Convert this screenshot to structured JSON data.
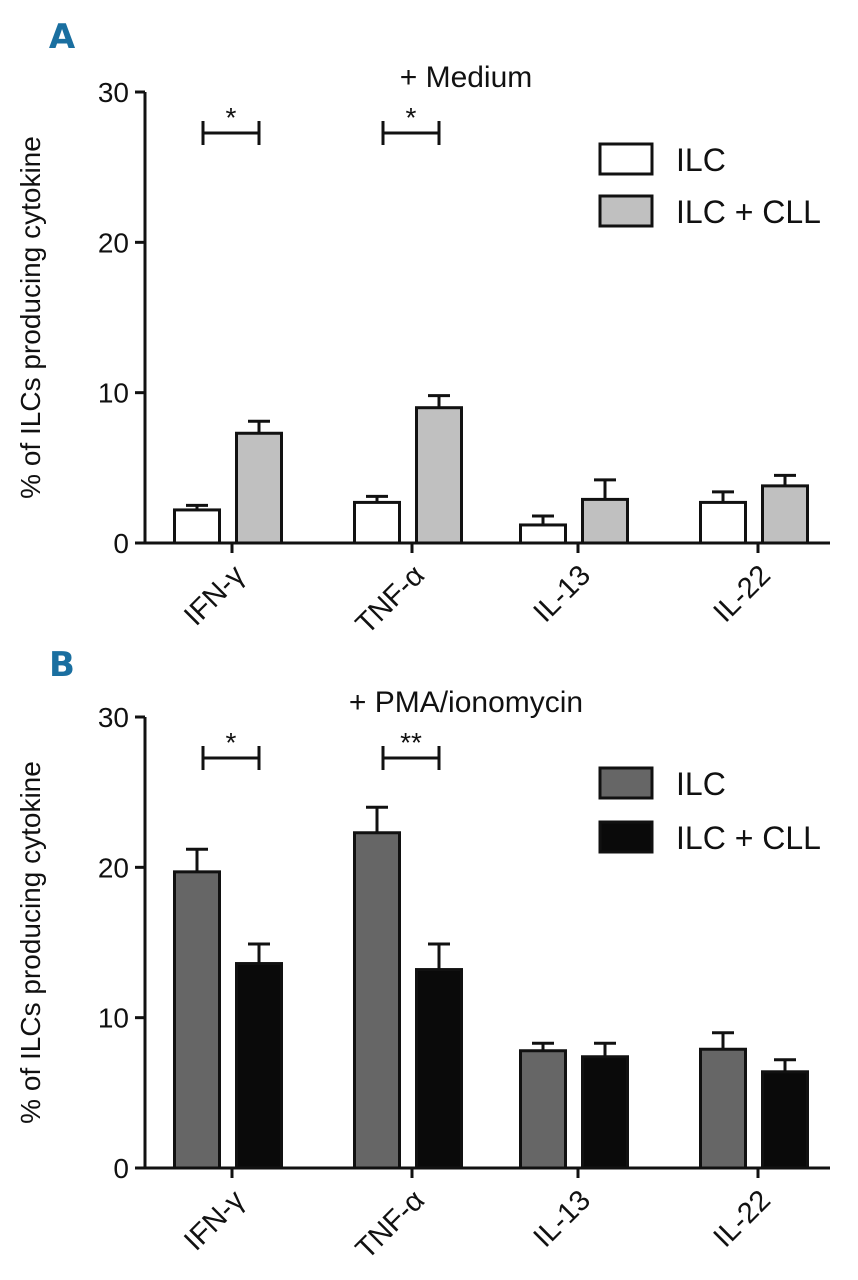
{
  "chart_data": [
    {
      "panel": "A",
      "type": "bar",
      "title": "+ Medium",
      "xlabel": "",
      "ylabel": "% of ILCs producing cytokine",
      "ylim": [
        0,
        30
      ],
      "yticks": [
        "0",
        "10",
        "20",
        "30"
      ],
      "categories": [
        "IFN-γ",
        "TNF-α",
        "IL-13",
        "IL-22"
      ],
      "series": [
        {
          "name": "ILC",
          "color": "#ffffff",
          "values": [
            2.2,
            2.7,
            1.2,
            2.7
          ],
          "errors": [
            0.3,
            0.4,
            0.6,
            0.7
          ]
        },
        {
          "name": "ILC + CLL",
          "color": "#c0c0c0",
          "values": [
            7.3,
            9.0,
            2.9,
            3.8
          ],
          "errors": [
            0.8,
            0.8,
            1.3,
            0.7
          ]
        }
      ],
      "significance": [
        {
          "category": "IFN-γ",
          "label": "*"
        },
        {
          "category": "TNF-α",
          "label": "*"
        }
      ],
      "legend_position": "top-right"
    },
    {
      "panel": "B",
      "type": "bar",
      "title": "+ PMA/ionomycin",
      "xlabel": "",
      "ylabel": "% of ILCs producing cytokine",
      "ylim": [
        0,
        30
      ],
      "yticks": [
        "0",
        "10",
        "20",
        "30"
      ],
      "categories": [
        "IFN-γ",
        "TNF-α",
        "IL-13",
        "IL-22"
      ],
      "series": [
        {
          "name": "ILC",
          "color": "#666666",
          "values": [
            19.7,
            22.3,
            7.8,
            7.9
          ],
          "errors": [
            1.5,
            1.7,
            0.5,
            1.1
          ]
        },
        {
          "name": "ILC + CLL",
          "color": "#0a0a0a",
          "values": [
            13.6,
            13.2,
            7.4,
            6.4
          ],
          "errors": [
            1.3,
            1.7,
            0.9,
            0.8
          ]
        }
      ],
      "significance": [
        {
          "category": "IFN-γ",
          "label": "*"
        },
        {
          "category": "TNF-α",
          "label": "**"
        }
      ],
      "legend_position": "top-right"
    }
  ],
  "panel_letter_color": "#1a6fa0"
}
